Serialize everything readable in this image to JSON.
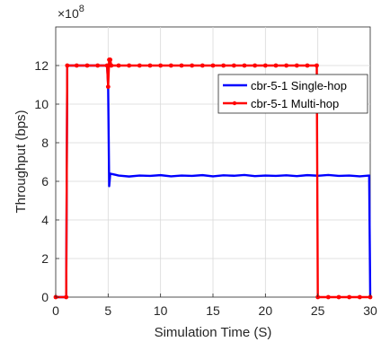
{
  "chart_data": {
    "type": "line",
    "xlabel": "Simulation Time (S)",
    "ylabel": "Throughput (bps)",
    "xlim": [
      0,
      30
    ],
    "ylim": [
      0,
      1400000000
    ],
    "xticks": [
      0,
      5,
      10,
      15,
      20,
      25,
      30
    ],
    "yticks": [
      0,
      200000000,
      400000000,
      600000000,
      800000000,
      1000000000,
      1200000000
    ],
    "xtick_labels": [
      "0",
      "5",
      "10",
      "15",
      "20",
      "25",
      "30"
    ],
    "ytick_labels": [
      "0",
      "2",
      "4",
      "6",
      "8",
      "10",
      "12"
    ],
    "y_exponent_label": "×10",
    "y_exponent_power": "8",
    "grid": true,
    "legend_position": "top-right",
    "series": [
      {
        "name": "cbr-5-1 Single-hop",
        "color": "#0000ff",
        "marker": "none",
        "x": [
          0,
          1,
          1.1,
          2,
          3,
          4,
          4.9,
          5.0,
          5.1,
          5.2,
          6,
          7,
          8,
          9,
          10,
          11,
          12,
          13,
          14,
          15,
          16,
          17,
          18,
          19,
          20,
          21,
          22,
          23,
          24,
          25,
          26,
          27,
          28,
          29,
          29.9,
          30
        ],
        "y": [
          0,
          0,
          1200000000,
          1200000000,
          1200000000,
          1200000000,
          1200000000,
          1100000000,
          575000000,
          640000000,
          630000000,
          625000000,
          630000000,
          628000000,
          632000000,
          626000000,
          630000000,
          628000000,
          632000000,
          626000000,
          631000000,
          629000000,
          633000000,
          627000000,
          630000000,
          628000000,
          631000000,
          627000000,
          632000000,
          629000000,
          633000000,
          628000000,
          630000000,
          626000000,
          630000000,
          0
        ]
      },
      {
        "name": "cbr-5-1 Multi-hop",
        "color": "#ff0000",
        "marker": "point",
        "x": [
          0,
          1,
          1.1,
          2,
          3,
          4,
          4.9,
          5.0,
          5.1,
          5.2,
          5.3,
          6,
          7,
          8,
          9,
          10,
          11,
          12,
          13,
          14,
          15,
          16,
          17,
          18,
          19,
          20,
          21,
          22,
          23,
          24,
          24.9,
          25,
          26,
          27,
          28,
          29,
          30
        ],
        "y": [
          0,
          0,
          1200000000,
          1200000000,
          1200000000,
          1200000000,
          1200000000,
          1090000000,
          1230000000,
          1230000000,
          1200000000,
          1200000000,
          1200000000,
          1200000000,
          1200000000,
          1200000000,
          1200000000,
          1200000000,
          1200000000,
          1200000000,
          1200000000,
          1200000000,
          1200000000,
          1200000000,
          1200000000,
          1200000000,
          1200000000,
          1200000000,
          1200000000,
          1200000000,
          1200000000,
          0,
          0,
          0,
          0,
          0,
          0
        ]
      }
    ]
  }
}
